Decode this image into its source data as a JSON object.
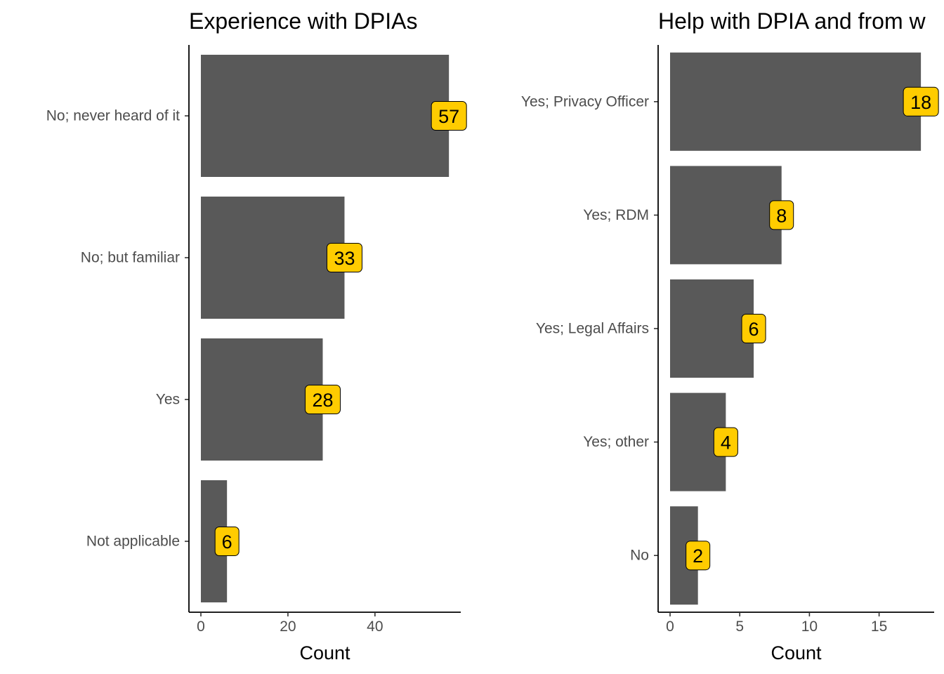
{
  "chart_data": [
    {
      "type": "bar",
      "orientation": "horizontal",
      "title": "Experience with DPIAs",
      "xlabel": "Count",
      "ylabel": "",
      "categories": [
        "No; never heard of it",
        "No; but familiar",
        "Yes",
        "Not applicable"
      ],
      "values": [
        57,
        33,
        28,
        6
      ],
      "xticks": [
        0,
        20,
        40
      ],
      "xlim": [
        0,
        59.9
      ],
      "bar_color": "#595959",
      "label_fill": "#FFCC00",
      "grid": false,
      "legend": "none"
    },
    {
      "type": "bar",
      "orientation": "horizontal",
      "title": "Help with DPIA and from w",
      "xlabel": "Count",
      "ylabel": "",
      "categories": [
        "Yes; Privacy Officer",
        "Yes; RDM",
        "Yes; Legal Affairs",
        "Yes; other",
        "No"
      ],
      "values": [
        18,
        8,
        6,
        4,
        2
      ],
      "xticks": [
        0,
        5,
        10,
        15
      ],
      "xlim": [
        0,
        18.9
      ],
      "bar_color": "#595959",
      "label_fill": "#FFCC00",
      "grid": false,
      "legend": "none"
    }
  ]
}
